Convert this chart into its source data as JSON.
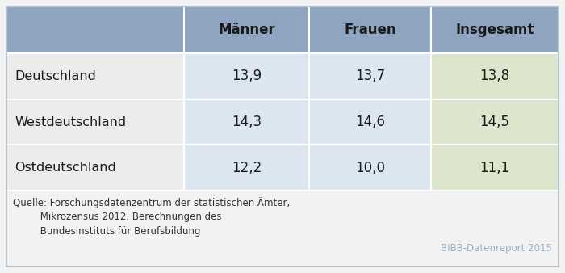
{
  "rows": [
    "Deutschland",
    "Westdeutschland",
    "Ostdeutschland"
  ],
  "col_headers": [
    "Männer",
    "Frauen",
    "Insgesamt"
  ],
  "values": [
    [
      "13,9",
      "13,7",
      "13,8"
    ],
    [
      "14,3",
      "14,6",
      "14,5"
    ],
    [
      "12,2",
      "10,0",
      "11,1"
    ]
  ],
  "header_bg": "#8fa4c0",
  "maenner_bg": "#dce6f1",
  "frauen_bg": "#dce6f1",
  "insgesamt_bg": "#dde5cd",
  "row_label_bg": "#ececec",
  "footer_bg": "#f2f2f2",
  "cell_text_color": "#1a1a1a",
  "source_text_color": "#333333",
  "bibb_color": "#9aaec5",
  "source_line1": "Quelle: Forschungsdatenzentrum der statistischen Ämter,",
  "source_line2": "         Mikrozensus 2012, Berechnungen des",
  "source_line3": "         Bundesinstituts für Berufsbildung",
  "bibb_text": "BIBB-Datenreport 2015",
  "figsize": [
    7.0,
    3.38
  ],
  "dpi": 100
}
